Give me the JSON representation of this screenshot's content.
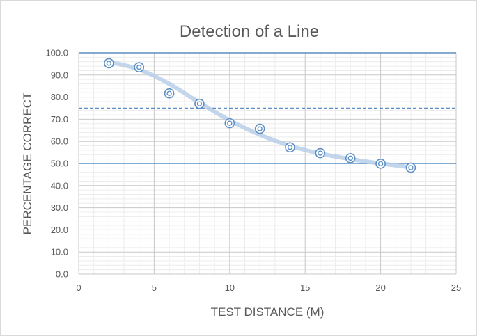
{
  "chart_data": {
    "type": "scatter",
    "title": "Detection of a Line",
    "xlabel": "TEST DISTANCE (M)",
    "ylabel": "PERCENTAGE CORRECT",
    "xlim": [
      0,
      25
    ],
    "ylim": [
      0,
      100
    ],
    "x_ticks": [
      0,
      5,
      10,
      15,
      20,
      25
    ],
    "y_ticks": [
      "0.0",
      "10.0",
      "20.0",
      "30.0",
      "40.0",
      "50.0",
      "60.0",
      "70.0",
      "80.0",
      "90.0",
      "100.0"
    ],
    "grid": {
      "major": true,
      "minor": true
    },
    "series": [
      {
        "x": [
          2,
          4,
          6,
          8,
          10,
          12,
          14,
          16,
          18,
          20,
          22
        ],
        "values": [
          95.3,
          93.5,
          81.7,
          77.0,
          68.2,
          65.7,
          57.3,
          54.7,
          52.4,
          49.9,
          48.1
        ],
        "marker": "double-circle",
        "color": "#5b8ec4"
      }
    ],
    "trendline": {
      "x": [
        2,
        4,
        6,
        8,
        10,
        12,
        14,
        16,
        18,
        20,
        22
      ],
      "values": [
        96.0,
        92.5,
        86.0,
        77.5,
        69.5,
        63.0,
        58.0,
        54.5,
        52.0,
        50.0,
        48.3
      ],
      "color": "#b8cfe8"
    },
    "reference_lines": [
      {
        "y": 100,
        "style": "solid",
        "color": "#5b8ec4"
      },
      {
        "y": 75,
        "style": "dashed",
        "color": "#5b8ec4"
      },
      {
        "y": 50,
        "style": "solid",
        "color": "#5b8ec4"
      }
    ]
  }
}
